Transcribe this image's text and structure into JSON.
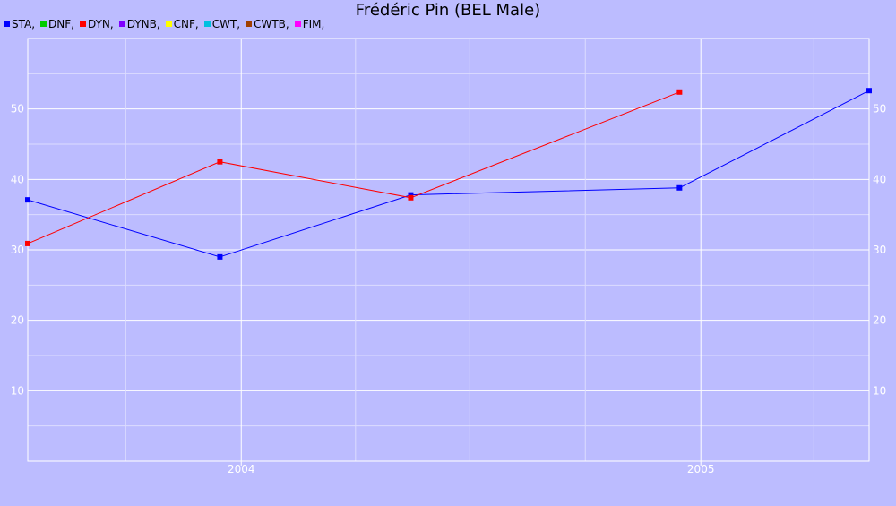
{
  "chart_data": {
    "type": "line",
    "title": "Frédéric Pin (BEL Male)",
    "xlabel": "",
    "ylabel": "",
    "x_axis": {
      "type": "date",
      "range": [
        "2003-07-15",
        "2005-05-15"
      ],
      "tick_labels": [
        {
          "date": "2004-01-01",
          "label": "2004"
        },
        {
          "date": "2005-01-01",
          "label": "2005"
        }
      ],
      "minor_ticks": [
        "2003-10-01",
        "2004-04-01",
        "2004-07-01",
        "2004-10-01",
        "2005-04-01"
      ]
    },
    "ylim": [
      0,
      60
    ],
    "y_ticks": [
      10,
      20,
      30,
      40,
      50
    ],
    "grid": true,
    "legend_placement": "top-left",
    "legend": [
      {
        "name": "STA",
        "label": "STA,",
        "color": "#0000ff"
      },
      {
        "name": "DNF",
        "label": "DNF,",
        "color": "#00cc00"
      },
      {
        "name": "DYN",
        "label": "DYN,",
        "color": "#ff0000"
      },
      {
        "name": "DYNB",
        "label": "DYNB,",
        "color": "#8000ff"
      },
      {
        "name": "CNF",
        "label": "CNF,",
        "color": "#ffff00"
      },
      {
        "name": "CWT",
        "label": "CWT,",
        "color": "#00c0e0"
      },
      {
        "name": "CWTB",
        "label": "CWTB,",
        "color": "#a04000"
      },
      {
        "name": "FIM",
        "label": "FIM,",
        "color": "#ff00ff"
      }
    ],
    "series": [
      {
        "name": "STA",
        "color": "#0000ff",
        "x": [
          "2003-07-15",
          "2003-12-15",
          "2004-05-15",
          "2004-12-15",
          "2005-05-15"
        ],
        "y": [
          37.1,
          29.0,
          37.8,
          38.8,
          52.6
        ]
      },
      {
        "name": "DYN",
        "color": "#ff0000",
        "x": [
          "2003-07-15",
          "2003-12-15",
          "2004-05-15",
          "2004-12-15"
        ],
        "y": [
          30.9,
          42.5,
          37.4,
          52.4
        ]
      }
    ]
  }
}
